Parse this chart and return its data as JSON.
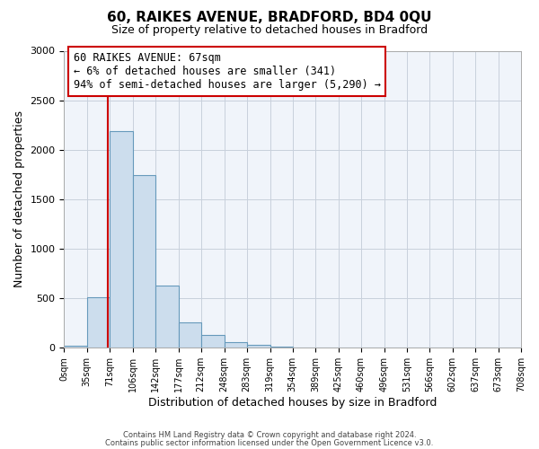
{
  "title": "60, RAIKES AVENUE, BRADFORD, BD4 0QU",
  "subtitle": "Size of property relative to detached houses in Bradford",
  "xlabel": "Distribution of detached houses by size in Bradford",
  "ylabel": "Number of detached properties",
  "bar_color": "#ccdded",
  "bar_edge_color": "#6699bb",
  "vline_color": "#cc0000",
  "vline_x": 67,
  "annotation_title": "60 RAIKES AVENUE: 67sqm",
  "annotation_line1": "← 6% of detached houses are smaller (341)",
  "annotation_line2": "94% of semi-detached houses are larger (5,290) →",
  "annotation_box_color": "#ffffff",
  "annotation_box_edge_color": "#cc0000",
  "bin_edges": [
    0,
    35,
    71,
    106,
    142,
    177,
    212,
    248,
    283,
    319,
    354,
    389,
    425,
    460,
    496,
    531,
    566,
    602,
    637,
    673,
    708
  ],
  "bin_counts": [
    20,
    510,
    2190,
    1740,
    630,
    255,
    130,
    60,
    28,
    10,
    5,
    2,
    1,
    1,
    0,
    0,
    0,
    0,
    0,
    0
  ],
  "ylim": [
    0,
    3000
  ],
  "yticks": [
    0,
    500,
    1000,
    1500,
    2000,
    2500,
    3000
  ],
  "tick_labels": [
    "0sqm",
    "35sqm",
    "71sqm",
    "106sqm",
    "142sqm",
    "177sqm",
    "212sqm",
    "248sqm",
    "283sqm",
    "319sqm",
    "354sqm",
    "389sqm",
    "425sqm",
    "460sqm",
    "496sqm",
    "531sqm",
    "566sqm",
    "602sqm",
    "637sqm",
    "673sqm",
    "708sqm"
  ],
  "footer_line1": "Contains HM Land Registry data © Crown copyright and database right 2024.",
  "footer_line2": "Contains public sector information licensed under the Open Government Licence v3.0.",
  "bg_color": "#f0f4fa"
}
